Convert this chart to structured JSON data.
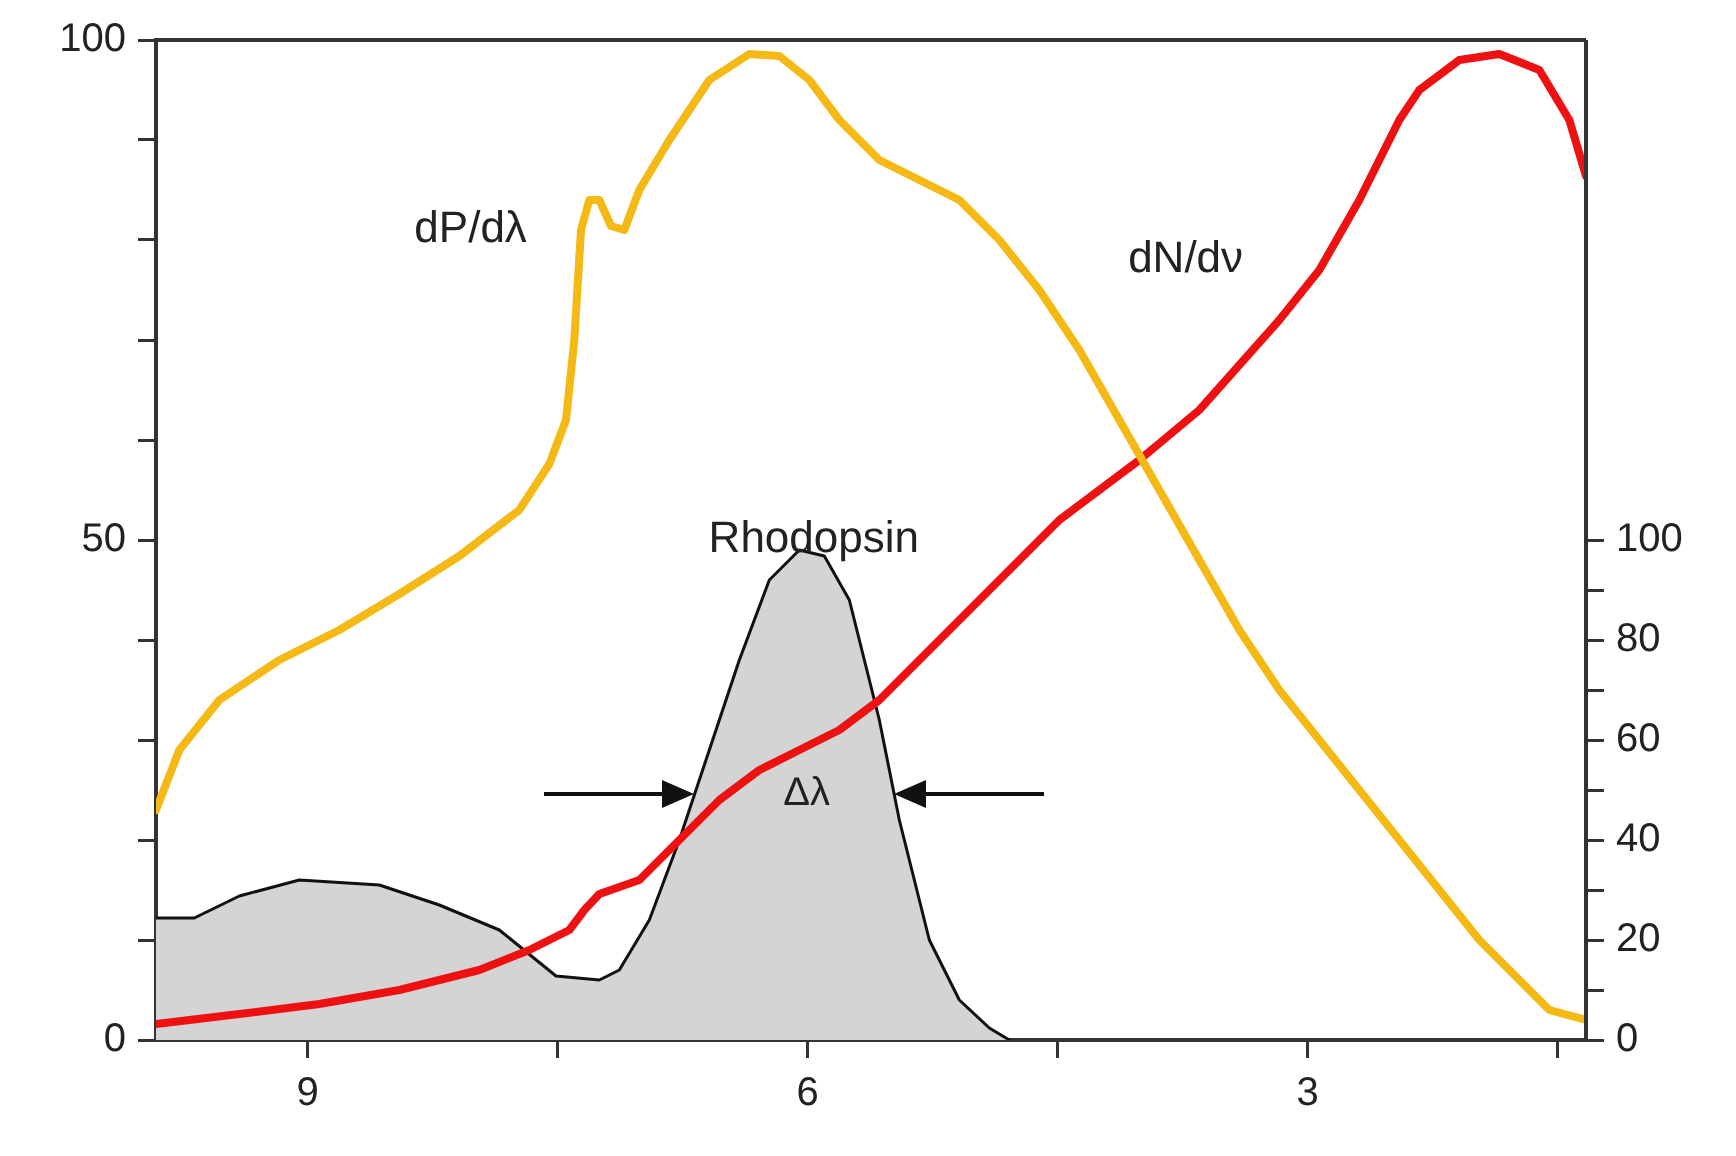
{
  "chart_data": {
    "type": "line",
    "xlim": [
      9.91,
      1.33
    ],
    "xticks": [
      9,
      {
        "value": 7.5,
        "label": null
      },
      6,
      {
        "value": 4.5,
        "label": null
      },
      3,
      {
        "value": 1.5,
        "label": null
      }
    ],
    "ylim": [
      0,
      100
    ],
    "yticks": [
      0,
      {
        "value": 10,
        "label": null
      },
      {
        "value": 20,
        "label": null
      },
      {
        "value": 30,
        "label": null
      },
      {
        "value": 40,
        "label": null
      },
      50,
      {
        "value": 60,
        "label": null
      },
      {
        "value": 70,
        "label": null
      },
      {
        "value": 80,
        "label": null
      },
      {
        "value": 90,
        "label": null
      },
      100
    ],
    "y2lim": [
      0,
      200
    ],
    "y2ticks": [
      0,
      {
        "value": 10,
        "label": null
      },
      20,
      {
        "value": 30,
        "label": null
      },
      40,
      {
        "value": 50,
        "label": null
      },
      60,
      {
        "value": 70,
        "label": null
      },
      80,
      {
        "value": 90,
        "label": null
      },
      100
    ],
    "grid": false,
    "legend": false,
    "marker": "none",
    "series": [
      {
        "name": "Rhodopsin",
        "type": "area",
        "axis": "y2",
        "color": "#d4d4d4",
        "x": [
          9.91,
          9.68,
          9.41,
          9.05,
          8.57,
          8.21,
          7.85,
          7.51,
          7.25,
          7.13,
          6.95,
          6.77,
          6.59,
          6.41,
          6.23,
          6.05,
          5.9,
          5.75,
          5.57,
          5.45,
          5.27,
          5.09,
          4.91,
          4.79
        ],
        "values": [
          24.4,
          24.4,
          28.8,
          32,
          31,
          27,
          22,
          12.8,
          12,
          14,
          24,
          40,
          58,
          76,
          92,
          98,
          96.8,
          88,
          64,
          44,
          20,
          8,
          2.4,
          0
        ]
      },
      {
        "name": "dP/dλ",
        "color": "#f5b916",
        "x": [
          9.91,
          9.77,
          9.53,
          9.17,
          8.81,
          8.45,
          8.09,
          7.73,
          7.55,
          7.45,
          7.4,
          7.36,
          7.31,
          7.25,
          7.18,
          7.1,
          7.01,
          6.83,
          6.59,
          6.35,
          6.17,
          5.99,
          5.81,
          5.57,
          5.33,
          5.09,
          4.85,
          4.61,
          4.37,
          4.13,
          3.89,
          3.65,
          3.41,
          3.17,
          2.93,
          2.69,
          2.45,
          2.21,
          1.97,
          1.73,
          1.55,
          1.33
        ],
        "values": [
          23,
          29,
          34,
          38,
          41,
          44.6,
          48.4,
          53,
          57.6,
          62,
          70,
          81,
          84,
          84,
          81.4,
          81,
          85,
          90,
          96,
          98.6,
          98.4,
          96,
          92,
          88,
          86,
          84,
          80,
          75,
          69,
          62,
          55,
          48,
          41,
          35,
          30,
          25,
          20,
          15,
          10,
          6,
          3,
          2
        ]
      },
      {
        "name": "dN/dν",
        "color": "#ee1111",
        "x": [
          9.91,
          9.41,
          8.93,
          8.45,
          7.97,
          7.67,
          7.43,
          7.34,
          7.25,
          7.01,
          6.77,
          6.53,
          6.29,
          6.05,
          5.81,
          5.57,
          5.21,
          4.85,
          4.49,
          4.01,
          3.65,
          3.17,
          2.93,
          2.69,
          2.45,
          2.33,
          2.09,
          1.85,
          1.61,
          1.43,
          1.33
        ],
        "values": [
          1.6,
          2.6,
          3.6,
          5,
          7,
          9,
          11,
          13,
          14.6,
          16,
          20,
          24,
          27,
          29,
          31,
          34,
          40,
          46,
          52,
          58,
          63,
          72,
          77,
          84,
          92,
          95,
          98,
          98.6,
          97,
          92,
          86.4
        ]
      }
    ],
    "annotations": [
      "Δλ"
    ]
  }
}
